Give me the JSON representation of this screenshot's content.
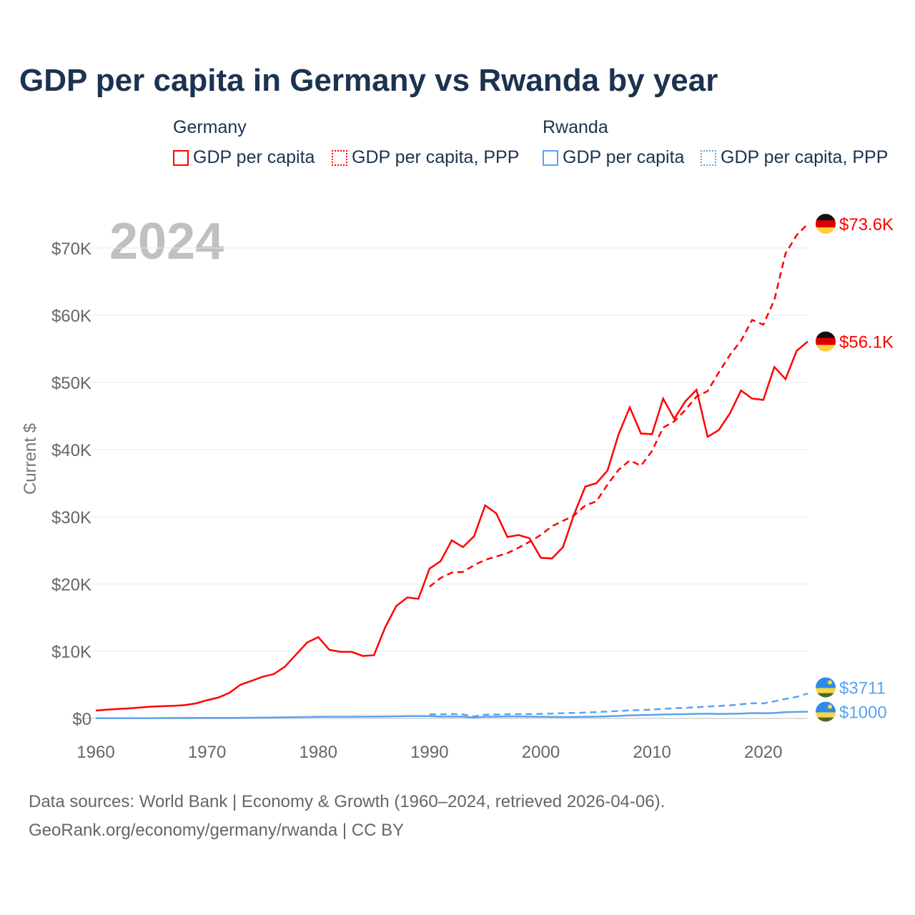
{
  "title": "GDP per capita in Germany vs Rwanda by year",
  "legend": {
    "germany": "Germany",
    "rwanda": "Rwanda",
    "gdp": "GDP per capita",
    "ppp": "GDP per capita, PPP"
  },
  "colors": {
    "germany": "#ff0000",
    "rwanda": "#5ba3ee"
  },
  "footer": {
    "line1": "Data sources: World Bank | Economy & Growth (1960–2024, retrieved 2026-04-06).",
    "line2": "GeoRank.org/economy/germany/rwanda | CC BY"
  },
  "chart_data": {
    "type": "line",
    "year_label": "2024",
    "ylabel": "Current $",
    "xlim": [
      1960,
      2024
    ],
    "ylim": [
      0,
      70000
    ],
    "x_ticks": [
      1960,
      1970,
      1980,
      1990,
      2000,
      2010,
      2020
    ],
    "y_ticks": [
      {
        "v": 0,
        "l": "$0"
      },
      {
        "v": 10000,
        "l": "$10K"
      },
      {
        "v": 20000,
        "l": "$20K"
      },
      {
        "v": 30000,
        "l": "$30K"
      },
      {
        "v": 40000,
        "l": "$40K"
      },
      {
        "v": 50000,
        "l": "$50K"
      },
      {
        "v": 60000,
        "l": "$60K"
      },
      {
        "v": 70000,
        "l": "$70K"
      }
    ],
    "series": [
      {
        "name": "Germany GDP per capita",
        "country": "germany",
        "dashed": false,
        "start": 1960,
        "end_label": "$56.1K",
        "values": [
          1170,
          1310,
          1420,
          1490,
          1620,
          1750,
          1820,
          1870,
          1980,
          2230,
          2700,
          3100,
          3800,
          5000,
          5600,
          6200,
          6600,
          7700,
          9500,
          11300,
          12100,
          10200,
          9900,
          9900,
          9300,
          9400,
          13500,
          16700,
          18000,
          17800,
          22300,
          23400,
          26500,
          25500,
          27100,
          31700,
          30500,
          27000,
          27300,
          26800,
          23900,
          23800,
          25500,
          30400,
          34500,
          35000,
          36900,
          42300,
          46300,
          42400,
          42300,
          47600,
          44600,
          47200,
          48900,
          41900,
          42900,
          45400,
          48800,
          47600,
          47400,
          52300,
          50500,
          54700,
          56100
        ]
      },
      {
        "name": "Germany GDP per capita, PPP",
        "country": "germany",
        "dashed": true,
        "start": 1990,
        "end_label": "$73.6K",
        "values": [
          19600,
          20900,
          21700,
          21800,
          22800,
          23600,
          24100,
          24600,
          25400,
          26300,
          27300,
          28600,
          29400,
          30200,
          31700,
          32300,
          34800,
          37000,
          38400,
          37600,
          39800,
          43300,
          44200,
          45900,
          47900,
          48700,
          51500,
          54100,
          56200,
          59300,
          58600,
          62300,
          69200,
          71900,
          73600
        ]
      },
      {
        "name": "Rwanda GDP per capita",
        "country": "rwanda",
        "dashed": false,
        "start": 1960,
        "end_label": "$1000",
        "values": [
          40,
          40,
          40,
          40,
          40,
          40,
          50,
          60,
          60,
          70,
          70,
          70,
          80,
          100,
          110,
          120,
          140,
          160,
          190,
          210,
          240,
          260,
          260,
          250,
          270,
          280,
          300,
          320,
          340,
          350,
          350,
          270,
          290,
          260,
          130,
          250,
          250,
          300,
          290,
          270,
          240,
          220,
          210,
          210,
          230,
          270,
          320,
          370,
          450,
          490,
          530,
          580,
          620,
          640,
          680,
          700,
          660,
          690,
          720,
          800,
          780,
          810,
          930,
          970,
          1000
        ]
      },
      {
        "name": "Rwanda GDP per capita, PPP",
        "country": "rwanda",
        "dashed": true,
        "start": 1990,
        "end_label": "$3711",
        "values": [
          610,
          620,
          650,
          600,
          300,
          560,
          570,
          620,
          640,
          650,
          680,
          720,
          780,
          820,
          870,
          940,
          1020,
          1110,
          1200,
          1250,
          1320,
          1420,
          1520,
          1570,
          1660,
          1770,
          1850,
          1940,
          2100,
          2270,
          2230,
          2530,
          2900,
          3200,
          3711
        ]
      }
    ]
  }
}
